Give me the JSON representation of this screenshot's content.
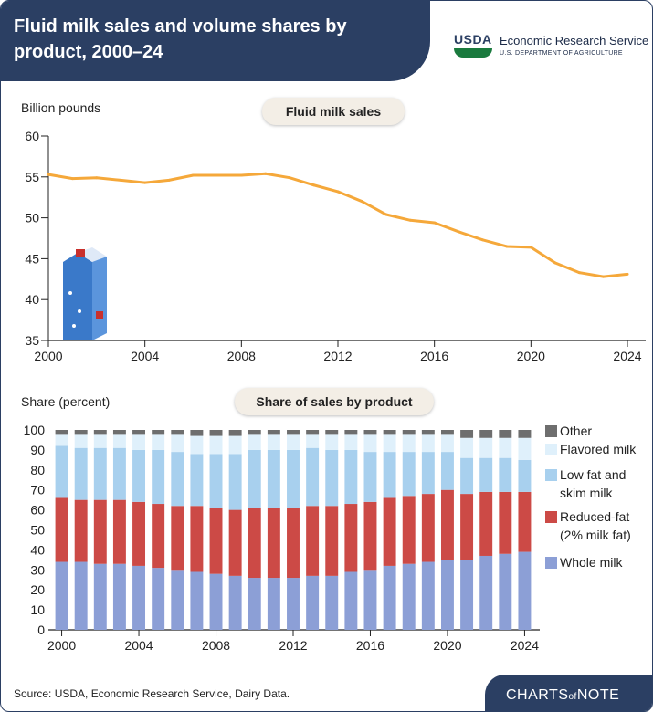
{
  "header": {
    "title": "Fluid milk sales and volume shares by product, 2000–24"
  },
  "branding": {
    "usda": "USDA",
    "agency": "Economic Research Service",
    "department": "U.S. DEPARTMENT OF AGRICULTURE"
  },
  "footer": {
    "source": "Source: USDA, Economic Research Service, Dairy Data.",
    "brand_main_1": "CHARTS",
    "brand_of": "of",
    "brand_main_2": "NOTE"
  },
  "chart_data": [
    {
      "type": "line",
      "title": "Fluid milk sales",
      "ylabel": "Billion pounds",
      "ylim": [
        35,
        60
      ],
      "yticks": [
        35,
        40,
        45,
        50,
        55,
        60
      ],
      "xlim": [
        2000,
        2024
      ],
      "xticks": [
        2000,
        2004,
        2008,
        2012,
        2016,
        2020,
        2024
      ],
      "color": "#f5a83a",
      "x": [
        2000,
        2001,
        2002,
        2003,
        2004,
        2005,
        2006,
        2007,
        2008,
        2009,
        2010,
        2011,
        2012,
        2013,
        2014,
        2015,
        2016,
        2017,
        2018,
        2019,
        2020,
        2021,
        2022,
        2023,
        2024
      ],
      "values": [
        55.3,
        54.8,
        54.9,
        54.6,
        54.3,
        54.6,
        55.2,
        55.2,
        55.2,
        55.4,
        54.9,
        54.0,
        53.2,
        52.0,
        50.4,
        49.7,
        49.4,
        48.3,
        47.3,
        46.5,
        46.4,
        44.5,
        43.3,
        42.8,
        43.1
      ]
    },
    {
      "type": "bar",
      "stacked": true,
      "title": "Share of sales by product",
      "ylabel": "Share (percent)",
      "ylim": [
        0,
        100
      ],
      "yticks": [
        0,
        10,
        20,
        30,
        40,
        50,
        60,
        70,
        80,
        90,
        100
      ],
      "xticks": [
        2000,
        2004,
        2008,
        2012,
        2016,
        2020,
        2024
      ],
      "legend_position": "right",
      "categories": [
        2000,
        2001,
        2002,
        2003,
        2004,
        2005,
        2006,
        2007,
        2008,
        2009,
        2010,
        2011,
        2012,
        2013,
        2014,
        2015,
        2016,
        2017,
        2018,
        2019,
        2020,
        2021,
        2022,
        2023,
        2024
      ],
      "series": [
        {
          "name": "Whole milk",
          "color": "#8c9fd6",
          "values": [
            34,
            34,
            33,
            33,
            32,
            31,
            30,
            29,
            28,
            27,
            26,
            26,
            26,
            27,
            27,
            29,
            30,
            32,
            33,
            34,
            35,
            35,
            37,
            38,
            39
          ]
        },
        {
          "name": "Reduced-fat (2% milk fat)",
          "color": "#cc4a46",
          "values": [
            32,
            31,
            32,
            32,
            32,
            32,
            32,
            33,
            33,
            33,
            35,
            35,
            35,
            35,
            35,
            34,
            34,
            34,
            34,
            34,
            35,
            33,
            32,
            31,
            30
          ]
        },
        {
          "name": "Low fat and skim milk",
          "color": "#a8d0ee",
          "values": [
            26,
            26,
            26,
            26,
            26,
            27,
            27,
            26,
            27,
            28,
            29,
            29,
            29,
            29,
            28,
            27,
            25,
            23,
            22,
            21,
            19,
            18,
            17,
            17,
            16
          ]
        },
        {
          "name": "Flavored milk",
          "color": "#dff0fb",
          "values": [
            6,
            7,
            7,
            7,
            8,
            8,
            9,
            9,
            9,
            9,
            8,
            8,
            8,
            7,
            8,
            8,
            9,
            9,
            9,
            9,
            9,
            10,
            10,
            10,
            11
          ]
        },
        {
          "name": "Other",
          "color": "#6e6e6e",
          "values": [
            2,
            2,
            2,
            2,
            2,
            2,
            2,
            3,
            3,
            3,
            2,
            2,
            2,
            2,
            2,
            2,
            2,
            2,
            2,
            2,
            2,
            4,
            4,
            4,
            4
          ]
        }
      ]
    }
  ]
}
